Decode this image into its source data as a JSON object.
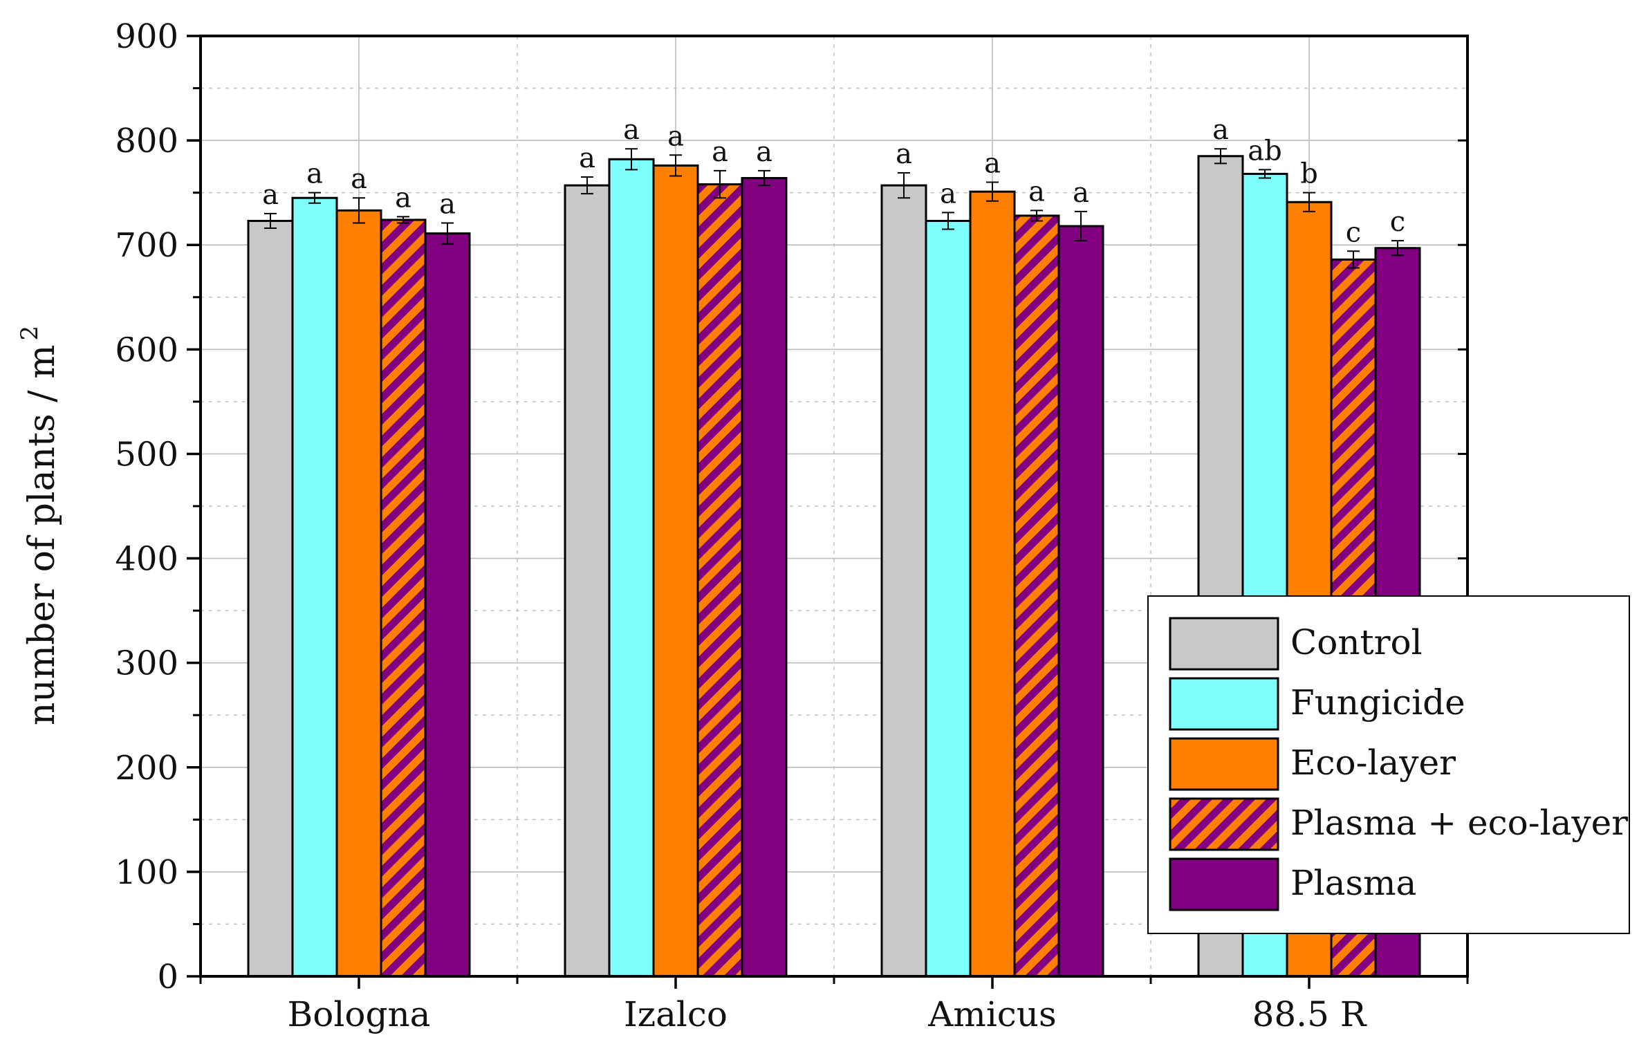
{
  "colors": {
    "control": "#c8c8c8",
    "fungicide": "#80ffff",
    "eco_layer": "#ff8000",
    "plasma_eco_base": "#ff8000",
    "plasma_eco_stripe": "#800080",
    "plasma": "#800080",
    "grid": "#bdbdbd",
    "axis": "#000000"
  },
  "chart_data": {
    "type": "bar",
    "title": "",
    "xlabel": "",
    "ylabel": "number of plants / m",
    "ylabel_superscript": "2",
    "ylim": [
      0,
      900
    ],
    "yticks": [
      "0",
      "100",
      "200",
      "300",
      "400",
      "500",
      "600",
      "700",
      "800",
      "900"
    ],
    "ytick_values": [
      0,
      100,
      200,
      300,
      400,
      500,
      600,
      700,
      800,
      900
    ],
    "grid": true,
    "legend_position": "bottom-right",
    "categories": [
      "Bologna",
      "Izalco",
      "Amicus",
      "88.5 R"
    ],
    "series": [
      {
        "name": "Control",
        "key": "control",
        "values": [
          723,
          757,
          757,
          785
        ],
        "errors": [
          7,
          8,
          12,
          7
        ],
        "labels": [
          "a",
          "a",
          "a",
          "a"
        ]
      },
      {
        "name": "Fungicide",
        "key": "fungicide",
        "values": [
          745,
          782,
          723,
          768
        ],
        "errors": [
          5,
          10,
          8,
          4
        ],
        "labels": [
          "a",
          "a",
          "a",
          "ab"
        ]
      },
      {
        "name": "Eco-layer",
        "key": "eco_layer",
        "values": [
          733,
          776,
          751,
          741
        ],
        "errors": [
          12,
          10,
          9,
          9
        ],
        "labels": [
          "a",
          "a",
          "a",
          "b"
        ]
      },
      {
        "name": "Plasma + eco-layer",
        "key": "plasma_eco",
        "values": [
          724,
          758,
          728,
          686
        ],
        "errors": [
          3,
          13,
          5,
          8
        ],
        "labels": [
          "a",
          "a",
          "a",
          "c"
        ]
      },
      {
        "name": "Plasma",
        "key": "plasma",
        "values": [
          711,
          764,
          718,
          697
        ],
        "errors": [
          10,
          7,
          14,
          7
        ],
        "labels": [
          "a",
          "a",
          "a",
          "c"
        ]
      }
    ]
  }
}
